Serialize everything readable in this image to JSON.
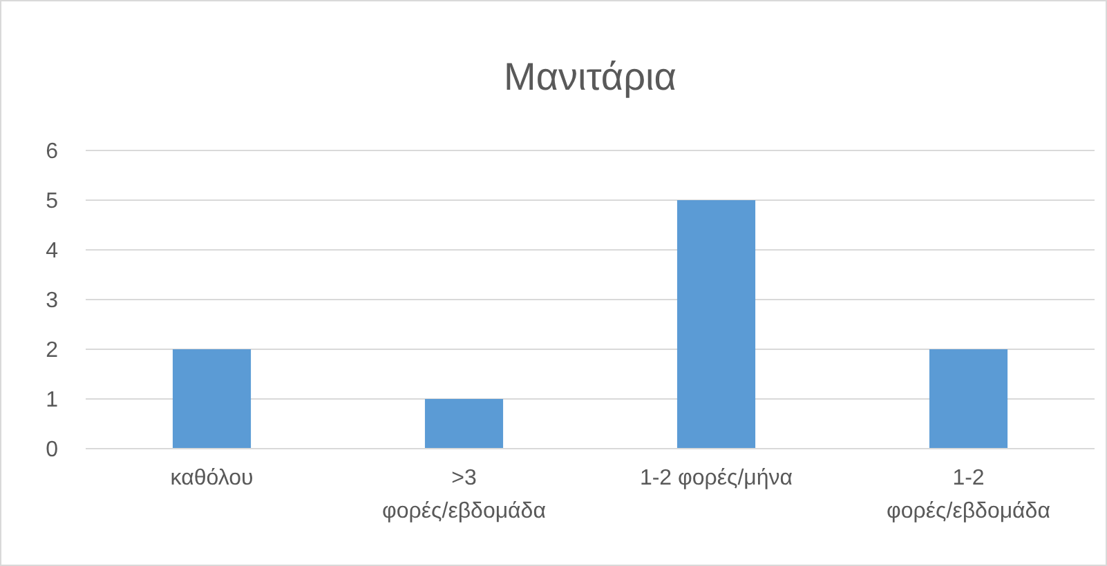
{
  "chart_data": {
    "type": "bar",
    "title": "Μανιτάρια",
    "categories": [
      "καθόλου",
      ">3 φορές/εβδομάδα",
      "1-2 φορές/μήνα",
      "1-2 φορές/εβδομάδα"
    ],
    "values": [
      2,
      1,
      5,
      2
    ],
    "color": "#5b9bd5",
    "ylim": [
      0,
      6
    ],
    "yticks": [
      0,
      1,
      2,
      3,
      4,
      5,
      6
    ],
    "grid": "y"
  }
}
